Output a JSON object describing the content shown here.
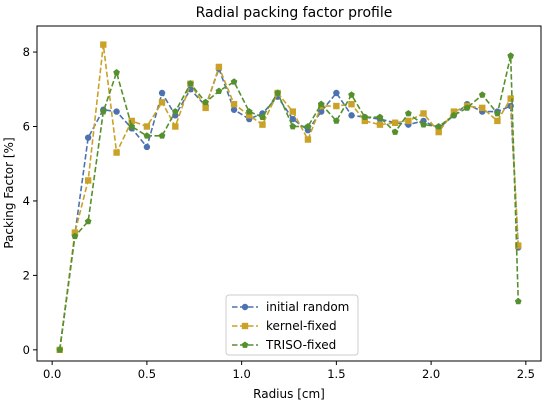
{
  "chart_data": {
    "type": "line",
    "title": "Radial packing factor profile",
    "xlabel": "Radius [cm]",
    "ylabel": "Packing Factor [%]",
    "xlim": [
      -0.08,
      2.58
    ],
    "ylim": [
      -0.3,
      8.7
    ],
    "xticks": [
      0.0,
      0.5,
      1.0,
      1.5,
      2.0,
      2.5
    ],
    "xtick_labels": [
      "0.0",
      "0.5",
      "1.0",
      "1.5",
      "2.0",
      "2.5"
    ],
    "yticks": [
      0,
      2,
      4,
      6,
      8
    ],
    "ytick_labels": [
      "0",
      "2",
      "4",
      "6",
      "8"
    ],
    "grid": false,
    "legend_position": "bottom-center",
    "x": [
      0.04,
      0.12,
      0.19,
      0.27,
      0.34,
      0.42,
      0.5,
      0.58,
      0.65,
      0.73,
      0.81,
      0.88,
      0.96,
      1.04,
      1.11,
      1.19,
      1.27,
      1.35,
      1.42,
      1.5,
      1.58,
      1.65,
      1.73,
      1.81,
      1.88,
      1.96,
      2.04,
      2.12,
      2.19,
      2.27,
      2.35,
      2.42,
      2.46
    ],
    "series": [
      {
        "name": "initial random",
        "color": "#4c72b0",
        "marker": "circle",
        "values": [
          0.0,
          3.1,
          5.7,
          6.45,
          6.4,
          5.95,
          5.45,
          6.9,
          6.3,
          7.0,
          6.55,
          7.55,
          6.45,
          6.2,
          6.35,
          6.8,
          6.2,
          5.9,
          6.4,
          6.9,
          6.3,
          6.25,
          6.2,
          6.1,
          6.05,
          6.15,
          5.95,
          6.3,
          6.6,
          6.4,
          6.4,
          6.55,
          2.75
        ]
      },
      {
        "name": "kernel-fixed",
        "color": "#c9a227",
        "marker": "square",
        "values": [
          0.0,
          3.15,
          4.55,
          8.2,
          5.3,
          6.15,
          6.0,
          6.65,
          6.0,
          7.15,
          6.5,
          7.6,
          6.6,
          6.3,
          6.05,
          6.9,
          6.4,
          5.65,
          6.55,
          6.55,
          6.6,
          6.15,
          6.05,
          6.1,
          6.15,
          6.35,
          5.85,
          6.4,
          6.55,
          6.5,
          6.15,
          6.75,
          2.8
        ]
      },
      {
        "name": "TRISO-fixed",
        "color": "#55902e",
        "marker": "pentagon",
        "values": [
          0.0,
          3.05,
          3.45,
          6.4,
          7.45,
          6.0,
          5.75,
          5.75,
          6.4,
          7.15,
          6.65,
          6.95,
          7.2,
          6.4,
          6.25,
          6.9,
          6.0,
          6.0,
          6.6,
          6.15,
          6.85,
          6.25,
          6.25,
          5.85,
          6.35,
          6.05,
          6.0,
          6.3,
          6.5,
          6.85,
          6.35,
          7.9,
          1.3
        ]
      }
    ]
  }
}
